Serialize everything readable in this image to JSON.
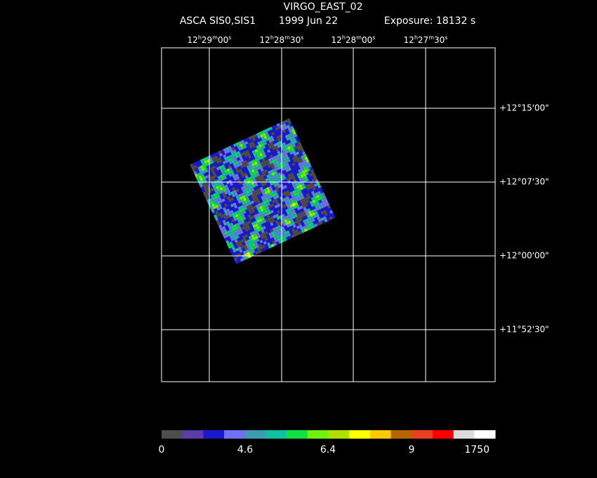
{
  "header": {
    "title": "VIRGO_EAST_02",
    "instrument": "ASCA SIS0,SIS1",
    "date": "1999 Jun 22",
    "exposure": "Exposure: 18132 s"
  },
  "ra_labels": [
    [
      "12",
      "h",
      "29",
      "m",
      "00",
      "s"
    ],
    [
      "12",
      "h",
      "28",
      "m",
      "30",
      "s"
    ],
    [
      "12",
      "h",
      "28",
      "m",
      "00",
      "s"
    ],
    [
      "12",
      "h",
      "27",
      "m",
      "30",
      "s"
    ]
  ],
  "dec_labels": [
    "+12°15'00\"",
    "+12°07'30\"",
    "+12°00'00\"",
    "+11°52'30\""
  ],
  "colorbar": {
    "colors": [
      "#4d4d4d",
      "#5a3da8",
      "#1a1acc",
      "#7070f0",
      "#3c9cb4",
      "#10c0a0",
      "#10e040",
      "#70f010",
      "#b0e000",
      "#ffff00",
      "#ffc800",
      "#b46400",
      "#e84020",
      "#ff0000",
      "#dcdcdc",
      "#ffffff"
    ],
    "labels": [
      0,
      4.6,
      6.4,
      9,
      1750
    ]
  }
}
